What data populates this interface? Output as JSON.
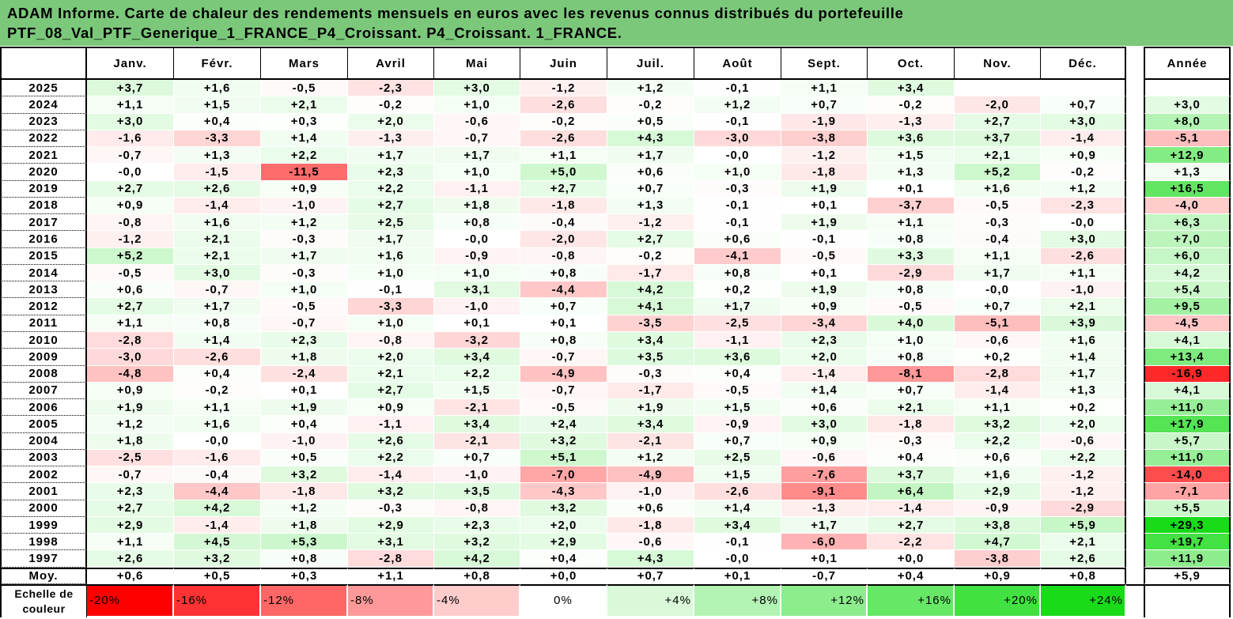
{
  "colors": {
    "title_background": "#7bc87b",
    "border": "#000000",
    "cell_gap": "#ffffff"
  },
  "chart_data": {
    "type": "heatmap",
    "title": {
      "line1": "ADAM Informe. Carte de chaleur des rendements mensuels en euros avec les revenus connus distribués du portefeuille",
      "line2": "PTF_08_Val_PTF_Generique_1_FRANCE_P4_Croissant. P4_Croissant. 1_FRANCE."
    },
    "columns": [
      "Janv.",
      "Févr.",
      "Mars",
      "Avril",
      "Mai",
      "Juin",
      "Juil.",
      "Août",
      "Sept.",
      "Oct.",
      "Nov.",
      "Déc."
    ],
    "annual_label": "Année",
    "rows": [
      {
        "year": "2025",
        "values": [
          "+3,7",
          "+1,6",
          "-0,5",
          "-2,3",
          "+3,0",
          "-1,2",
          "+1,2",
          "-0,1",
          "+1,1",
          "+3,4",
          "",
          ""
        ],
        "annual": ""
      },
      {
        "year": "2024",
        "values": [
          "+1,1",
          "+1,5",
          "+2,1",
          "-0,2",
          "+1,0",
          "-2,6",
          "-0,2",
          "+1,2",
          "+0,7",
          "-0,2",
          "-2,0",
          "+0,7"
        ],
        "annual": "+3,0"
      },
      {
        "year": "2023",
        "values": [
          "+3,0",
          "+0,4",
          "+0,3",
          "+2,0",
          "-0,6",
          "-0,2",
          "+0,5",
          "-0,1",
          "-1,9",
          "-1,3",
          "+2,7",
          "+3,0"
        ],
        "annual": "+8,0"
      },
      {
        "year": "2022",
        "values": [
          "-1,6",
          "-3,3",
          "+1,4",
          "-1,3",
          "-0,7",
          "-2,6",
          "+4,3",
          "-3,0",
          "-3,8",
          "+3,6",
          "+3,7",
          "-1,4"
        ],
        "annual": "-5,1"
      },
      {
        "year": "2021",
        "values": [
          "-0,7",
          "+1,3",
          "+2,2",
          "+1,7",
          "+1,7",
          "+1,1",
          "+1,7",
          "-0,0",
          "-1,2",
          "+1,5",
          "+2,1",
          "+0,9"
        ],
        "annual": "+12,9"
      },
      {
        "year": "2020",
        "values": [
          "-0,0",
          "-1,5",
          "-11,5",
          "+2,3",
          "+1,0",
          "+5,0",
          "+0,6",
          "+1,0",
          "-1,8",
          "+1,3",
          "+5,2",
          "-0,2"
        ],
        "annual": "+1,3"
      },
      {
        "year": "2019",
        "values": [
          "+2,7",
          "+2,6",
          "+0,9",
          "+2,2",
          "-1,1",
          "+2,7",
          "+0,7",
          "-0,3",
          "+1,9",
          "+0,1",
          "+1,6",
          "+1,2"
        ],
        "annual": "+16,5"
      },
      {
        "year": "2018",
        "values": [
          "+0,9",
          "-1,4",
          "-1,0",
          "+2,7",
          "+1,8",
          "-1,8",
          "+1,3",
          "-0,1",
          "+0,1",
          "-3,7",
          "-0,5",
          "-2,3"
        ],
        "annual": "-4,0"
      },
      {
        "year": "2017",
        "values": [
          "-0,8",
          "+1,6",
          "+1,2",
          "+2,5",
          "+0,8",
          "-0,4",
          "-1,2",
          "-0,1",
          "+1,9",
          "+1,1",
          "-0,3",
          "-0,0"
        ],
        "annual": "+6,3"
      },
      {
        "year": "2016",
        "values": [
          "-1,2",
          "+2,1",
          "-0,3",
          "+1,7",
          "-0,0",
          "-2,0",
          "+2,7",
          "+0,6",
          "-0,1",
          "+0,8",
          "-0,4",
          "+3,0"
        ],
        "annual": "+7,0"
      },
      {
        "year": "2015",
        "values": [
          "+5,2",
          "+2,1",
          "+1,7",
          "+1,6",
          "-0,9",
          "-0,8",
          "-0,2",
          "-4,1",
          "-0,5",
          "+3,3",
          "+1,1",
          "-2,6"
        ],
        "annual": "+6,0"
      },
      {
        "year": "2014",
        "values": [
          "-0,5",
          "+3,0",
          "-0,3",
          "+1,0",
          "+1,0",
          "+0,8",
          "-1,7",
          "+0,8",
          "+0,1",
          "-2,9",
          "+1,7",
          "+1,1"
        ],
        "annual": "+4,2"
      },
      {
        "year": "2013",
        "values": [
          "+0,6",
          "-0,7",
          "+1,0",
          "-0,1",
          "+3,1",
          "-4,4",
          "+4,2",
          "+0,2",
          "+1,9",
          "+0,8",
          "-0,0",
          "-1,0"
        ],
        "annual": "+5,4"
      },
      {
        "year": "2012",
        "values": [
          "+2,7",
          "+1,7",
          "-0,5",
          "-3,3",
          "-1,0",
          "+0,7",
          "+4,1",
          "+1,7",
          "+0,9",
          "-0,5",
          "+0,7",
          "+2,1"
        ],
        "annual": "+9,5"
      },
      {
        "year": "2011",
        "values": [
          "+1,1",
          "+0,8",
          "-0,7",
          "+1,0",
          "+0,1",
          "+0,1",
          "-3,5",
          "-2,5",
          "-3,4",
          "+4,0",
          "-5,1",
          "+3,9"
        ],
        "annual": "-4,5"
      },
      {
        "year": "2010",
        "values": [
          "-2,8",
          "+1,4",
          "+2,3",
          "-0,8",
          "-3,2",
          "+0,8",
          "+3,4",
          "-1,1",
          "+2,3",
          "+1,0",
          "-0,6",
          "+1,6"
        ],
        "annual": "+4,1"
      },
      {
        "year": "2009",
        "values": [
          "-3,0",
          "-2,6",
          "+1,8",
          "+2,0",
          "+3,4",
          "-0,7",
          "+3,5",
          "+3,6",
          "+2,0",
          "+0,8",
          "+0,2",
          "+1,4"
        ],
        "annual": "+13,4"
      },
      {
        "year": "2008",
        "values": [
          "-4,8",
          "+0,4",
          "-2,4",
          "+2,1",
          "+2,2",
          "-4,9",
          "-0,3",
          "+0,4",
          "-1,4",
          "-8,1",
          "-2,8",
          "+1,7"
        ],
        "annual": "-16,9"
      },
      {
        "year": "2007",
        "values": [
          "+0,9",
          "-0,2",
          "+0,1",
          "+2,7",
          "+1,5",
          "-0,7",
          "-1,7",
          "-0,5",
          "+1,4",
          "+0,7",
          "-1,4",
          "+1,3"
        ],
        "annual": "+4,1"
      },
      {
        "year": "2006",
        "values": [
          "+1,9",
          "+1,1",
          "+1,9",
          "+0,9",
          "-2,1",
          "-0,5",
          "+1,9",
          "+1,5",
          "+0,6",
          "+2,1",
          "+1,1",
          "+0,2"
        ],
        "annual": "+11,0"
      },
      {
        "year": "2005",
        "values": [
          "+1,2",
          "+1,6",
          "+0,4",
          "-1,1",
          "+3,4",
          "+2,4",
          "+3,4",
          "-0,9",
          "+3,0",
          "-1,8",
          "+3,2",
          "+2,0"
        ],
        "annual": "+17,9"
      },
      {
        "year": "2004",
        "values": [
          "+1,8",
          "-0,0",
          "-1,0",
          "+2,6",
          "-2,1",
          "+3,2",
          "-2,1",
          "+0,7",
          "+0,9",
          "-0,3",
          "+2,2",
          "-0,6"
        ],
        "annual": "+5,7"
      },
      {
        "year": "2003",
        "values": [
          "-2,5",
          "-1,6",
          "+0,5",
          "+2,2",
          "+0,7",
          "+5,1",
          "+1,2",
          "+2,5",
          "-0,6",
          "+0,4",
          "+0,6",
          "+2,2"
        ],
        "annual": "+11,0"
      },
      {
        "year": "2002",
        "values": [
          "-0,7",
          "-0,4",
          "+3,2",
          "-1,4",
          "-1,0",
          "-7,0",
          "-4,9",
          "+1,5",
          "-7,6",
          "+3,7",
          "+1,6",
          "-1,2"
        ],
        "annual": "-14,0"
      },
      {
        "year": "2001",
        "values": [
          "+2,3",
          "-4,4",
          "-1,8",
          "+3,2",
          "+3,5",
          "-4,3",
          "-1,0",
          "-2,6",
          "-9,1",
          "+6,4",
          "+2,9",
          "-1,2"
        ],
        "annual": "-7,1"
      },
      {
        "year": "2000",
        "values": [
          "+2,7",
          "+4,2",
          "+1,2",
          "-0,3",
          "-0,8",
          "+3,2",
          "+0,6",
          "+1,4",
          "-1,3",
          "-1,4",
          "-0,9",
          "-2,9"
        ],
        "annual": "+5,5"
      },
      {
        "year": "1999",
        "values": [
          "+2,9",
          "-1,4",
          "+1,8",
          "+2,9",
          "+2,3",
          "+2,0",
          "-1,8",
          "+3,4",
          "+1,7",
          "+2,7",
          "+3,8",
          "+5,9"
        ],
        "annual": "+29,3"
      },
      {
        "year": "1998",
        "values": [
          "+1,1",
          "+4,5",
          "+5,3",
          "+3,1",
          "+3,2",
          "+2,9",
          "-0,6",
          "-0,1",
          "-6,0",
          "-2,2",
          "+4,7",
          "+2,1"
        ],
        "annual": "+19,7"
      },
      {
        "year": "1997",
        "values": [
          "+2,6",
          "+3,2",
          "+0,8",
          "-2,8",
          "+4,2",
          "+0,4",
          "+4,3",
          "-0,0",
          "+0,1",
          "+0,0",
          "-3,8",
          "+2,6"
        ],
        "annual": "+11,9"
      }
    ],
    "average": {
      "label": "Moy.",
      "values": [
        "+0,6",
        "+0,5",
        "+0,3",
        "+1,1",
        "+0,8",
        "+0,0",
        "+0,7",
        "+0,1",
        "-0,7",
        "+0,4",
        "+0,9",
        "+0,8"
      ],
      "annual": "+5,9"
    },
    "color_scale": {
      "label_line1": "Echelle de",
      "label_line2": "couleur",
      "negative_color": "#ff0000",
      "negative_limit": -20,
      "positive_color": "#1adb1a",
      "positive_limit": 24,
      "steps": [
        {
          "label": "-20%",
          "value": -20
        },
        {
          "label": "-16%",
          "value": -16
        },
        {
          "label": "-12%",
          "value": -12
        },
        {
          "label": "-8%",
          "value": -8
        },
        {
          "label": "-4%",
          "value": -4
        },
        {
          "label": "0%",
          "value": 0
        },
        {
          "label": "+4%",
          "value": 4
        },
        {
          "label": "+8%",
          "value": 8
        },
        {
          "label": "+12%",
          "value": 12
        },
        {
          "label": "+16%",
          "value": 16
        },
        {
          "label": "+20%",
          "value": 20
        },
        {
          "label": "+24%",
          "value": 24
        }
      ]
    }
  }
}
